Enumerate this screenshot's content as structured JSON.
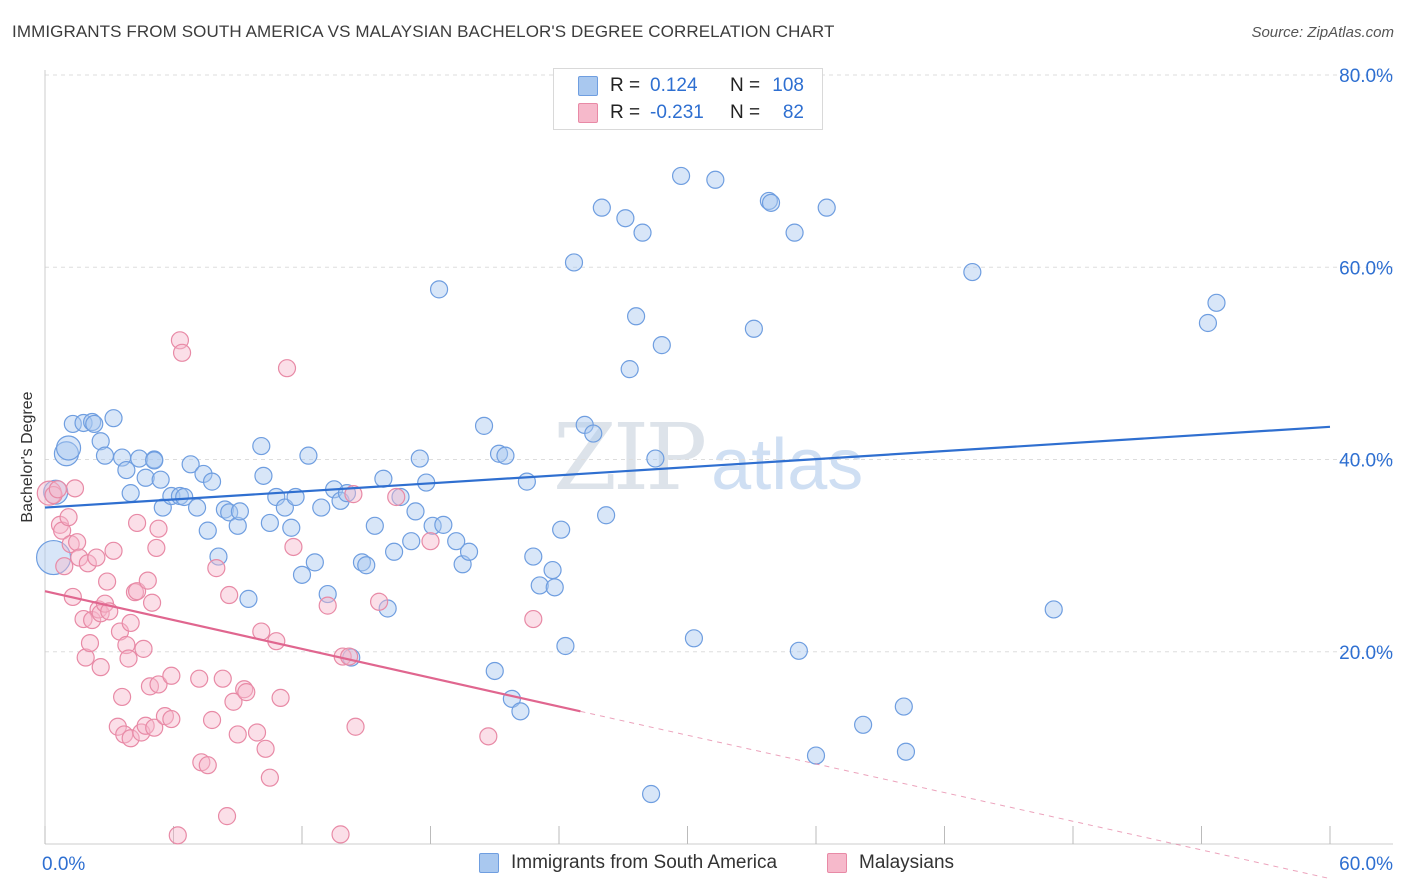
{
  "title": "IMMIGRANTS FROM SOUTH AMERICA VS MALAYSIAN BACHELOR'S DEGREE CORRELATION CHART",
  "source": "Source: ZipAtlas.com",
  "watermark": {
    "zip": "ZIP",
    "atlas": "atlas"
  },
  "legend_top": [
    {
      "key": "R =",
      "r": "0.124",
      "n_key": "N =",
      "n": "108"
    },
    {
      "key": "R =",
      "r": "-0.231",
      "n_key": "N =",
      "n": "82"
    }
  ],
  "legend_bottom": [
    "Immigrants from South America",
    "Malaysians"
  ],
  "colors": {
    "blue_fill": "#a9c8ef",
    "blue_stroke": "#6f9ee0",
    "blue_line": "#2f6fd0",
    "pink_fill": "#f6b9cb",
    "pink_stroke": "#e88aa6",
    "pink_line": "#e0668f",
    "grid": "#dddddd",
    "axis_text": "#2e6fd1"
  },
  "chart_data": {
    "type": "scatter",
    "title": "IMMIGRANTS FROM SOUTH AMERICA VS MALAYSIAN BACHELOR'S DEGREE CORRELATION CHART",
    "xlabel": "",
    "ylabel": "Bachelor's Degree",
    "xlim": [
      0,
      60
    ],
    "ylim": [
      0,
      82
    ],
    "x_tick_labels": [
      "0.0%",
      "60.0%"
    ],
    "y_ticks": [
      20,
      40,
      60,
      80
    ],
    "y_tick_labels": [
      "20.0%",
      "40.0%",
      "60.0%",
      "80.0%"
    ],
    "grid": true,
    "legend_position": "top-center",
    "series": [
      {
        "name": "Immigrants from South America",
        "R": 0.124,
        "N": 108,
        "trend": {
          "x0": 0,
          "y0": 35.0,
          "x1": 60,
          "y1": 43.4
        },
        "points": [
          [
            0.4,
            29.8,
            3
          ],
          [
            0.5,
            36.6,
            2
          ],
          [
            1.0,
            40.6,
            2
          ],
          [
            1.1,
            41.2,
            2
          ],
          [
            1.3,
            43.7,
            1
          ],
          [
            1.8,
            43.8,
            1
          ],
          [
            2.2,
            43.9,
            1
          ],
          [
            2.3,
            43.7,
            1
          ],
          [
            2.6,
            41.9,
            1
          ],
          [
            2.8,
            40.4,
            1
          ],
          [
            3.2,
            44.3,
            1
          ],
          [
            3.6,
            40.2,
            1
          ],
          [
            3.8,
            38.9,
            1
          ],
          [
            4.0,
            36.5,
            1
          ],
          [
            4.4,
            40.1,
            1
          ],
          [
            4.7,
            38.1,
            1
          ],
          [
            5.1,
            40.0,
            1
          ],
          [
            5.1,
            39.9,
            1
          ],
          [
            5.4,
            37.9,
            1
          ],
          [
            5.5,
            35.0,
            1
          ],
          [
            5.9,
            36.2,
            1
          ],
          [
            6.3,
            36.2,
            1
          ],
          [
            6.5,
            36.1,
            1
          ],
          [
            6.8,
            39.5,
            1
          ],
          [
            7.1,
            35.0,
            1
          ],
          [
            7.4,
            38.5,
            1
          ],
          [
            7.6,
            32.6,
            1
          ],
          [
            7.8,
            37.7,
            1
          ],
          [
            8.1,
            29.9,
            1
          ],
          [
            8.4,
            34.8,
            1
          ],
          [
            8.6,
            34.5,
            1
          ],
          [
            9.0,
            33.1,
            1
          ],
          [
            9.1,
            34.6,
            1
          ],
          [
            9.5,
            25.5,
            1
          ],
          [
            10.1,
            41.4,
            1
          ],
          [
            10.2,
            38.3,
            1
          ],
          [
            10.5,
            33.4,
            1
          ],
          [
            10.8,
            36.1,
            1
          ],
          [
            11.2,
            35.0,
            1
          ],
          [
            11.5,
            32.9,
            1
          ],
          [
            11.7,
            36.1,
            1
          ],
          [
            12.0,
            28.0,
            1
          ],
          [
            12.3,
            40.4,
            1
          ],
          [
            12.6,
            29.3,
            1
          ],
          [
            12.9,
            35.0,
            1
          ],
          [
            13.2,
            26.0,
            1
          ],
          [
            13.5,
            36.9,
            1
          ],
          [
            13.8,
            35.7,
            1
          ],
          [
            14.1,
            36.5,
            1
          ],
          [
            14.3,
            19.4,
            1
          ],
          [
            14.8,
            29.3,
            1
          ],
          [
            15.0,
            29.0,
            1
          ],
          [
            15.4,
            33.1,
            1
          ],
          [
            15.8,
            38.0,
            1
          ],
          [
            16.0,
            24.5,
            1
          ],
          [
            16.3,
            30.4,
            1
          ],
          [
            16.6,
            36.1,
            1
          ],
          [
            17.1,
            31.5,
            1
          ],
          [
            17.3,
            34.6,
            1
          ],
          [
            17.5,
            40.1,
            1
          ],
          [
            17.8,
            37.6,
            1
          ],
          [
            18.1,
            33.1,
            1
          ],
          [
            18.4,
            57.7,
            1
          ],
          [
            18.6,
            33.2,
            1
          ],
          [
            19.2,
            31.5,
            1
          ],
          [
            19.5,
            29.1,
            1
          ],
          [
            19.8,
            30.4,
            1
          ],
          [
            20.5,
            43.5,
            1
          ],
          [
            21.0,
            18.0,
            1
          ],
          [
            21.2,
            40.6,
            1
          ],
          [
            21.5,
            40.4,
            1
          ],
          [
            21.8,
            15.1,
            1
          ],
          [
            22.2,
            13.8,
            1
          ],
          [
            22.5,
            37.7,
            1
          ],
          [
            22.8,
            29.9,
            1
          ],
          [
            23.1,
            26.9,
            1
          ],
          [
            23.7,
            28.5,
            1
          ],
          [
            23.8,
            26.7,
            1
          ],
          [
            24.1,
            32.7,
            1
          ],
          [
            24.3,
            20.6,
            1
          ],
          [
            24.7,
            60.5,
            1
          ],
          [
            25.2,
            43.6,
            1
          ],
          [
            25.6,
            42.7,
            1
          ],
          [
            26.0,
            66.2,
            1
          ],
          [
            26.2,
            34.2,
            1
          ],
          [
            27.1,
            65.1,
            1
          ],
          [
            27.3,
            49.4,
            1
          ],
          [
            27.6,
            54.9,
            1
          ],
          [
            27.9,
            63.6,
            1
          ],
          [
            28.3,
            5.2,
            1
          ],
          [
            28.5,
            40.1,
            1
          ],
          [
            28.8,
            51.9,
            1
          ],
          [
            29.7,
            69.5,
            1
          ],
          [
            30.3,
            21.4,
            1
          ],
          [
            31.3,
            69.1,
            1
          ],
          [
            33.1,
            53.6,
            1
          ],
          [
            33.8,
            66.9,
            1
          ],
          [
            33.9,
            66.7,
            1
          ],
          [
            35.0,
            63.6,
            1
          ],
          [
            35.2,
            20.1,
            1
          ],
          [
            36.0,
            9.2,
            1
          ],
          [
            36.5,
            66.2,
            1
          ],
          [
            38.2,
            12.4,
            1
          ],
          [
            40.1,
            14.3,
            1
          ],
          [
            40.2,
            9.6,
            1
          ],
          [
            43.3,
            59.5,
            1
          ],
          [
            47.1,
            24.4,
            1
          ],
          [
            54.3,
            54.2,
            1
          ],
          [
            54.7,
            56.3,
            1
          ]
        ]
      },
      {
        "name": "Malaysians",
        "R": -0.231,
        "N": 82,
        "trend": {
          "x0": 0,
          "y0": 26.3,
          "x1": 25,
          "y1": 13.8
        },
        "trend_dashed": {
          "x0": 25,
          "y0": 13.8,
          "x1": 60,
          "y1": -3.6
        },
        "points": [
          [
            0.2,
            36.5,
            2
          ],
          [
            0.4,
            36.3,
            1
          ],
          [
            0.6,
            36.9,
            1
          ],
          [
            0.7,
            33.2,
            1
          ],
          [
            0.8,
            32.6,
            1
          ],
          [
            0.9,
            28.9,
            1
          ],
          [
            1.1,
            34.0,
            1
          ],
          [
            1.2,
            31.2,
            1
          ],
          [
            1.3,
            25.7,
            1
          ],
          [
            1.4,
            37.0,
            1
          ],
          [
            1.5,
            31.4,
            1
          ],
          [
            1.6,
            29.8,
            1
          ],
          [
            1.8,
            23.4,
            1
          ],
          [
            1.9,
            19.4,
            1
          ],
          [
            2.0,
            29.2,
            1
          ],
          [
            2.1,
            20.9,
            1
          ],
          [
            2.2,
            23.3,
            1
          ],
          [
            2.4,
            29.8,
            1
          ],
          [
            2.5,
            24.4,
            1
          ],
          [
            2.6,
            24.0,
            1
          ],
          [
            2.6,
            18.4,
            1
          ],
          [
            2.8,
            25.0,
            1
          ],
          [
            2.9,
            27.3,
            1
          ],
          [
            3.0,
            24.2,
            1
          ],
          [
            3.2,
            30.5,
            1
          ],
          [
            3.4,
            12.2,
            1
          ],
          [
            3.5,
            22.1,
            1
          ],
          [
            3.6,
            15.3,
            1
          ],
          [
            3.7,
            11.4,
            1
          ],
          [
            3.8,
            20.7,
            1
          ],
          [
            3.9,
            19.3,
            1
          ],
          [
            4.0,
            23.0,
            1
          ],
          [
            4.0,
            11.0,
            1
          ],
          [
            4.2,
            26.2,
            1
          ],
          [
            4.3,
            26.3,
            1
          ],
          [
            4.3,
            33.4,
            1
          ],
          [
            4.5,
            11.6,
            1
          ],
          [
            4.6,
            20.3,
            1
          ],
          [
            4.7,
            12.3,
            1
          ],
          [
            4.8,
            27.4,
            1
          ],
          [
            4.9,
            16.4,
            1
          ],
          [
            5.0,
            25.1,
            1
          ],
          [
            5.1,
            12.1,
            1
          ],
          [
            5.2,
            30.8,
            1
          ],
          [
            5.3,
            32.8,
            1
          ],
          [
            5.3,
            16.6,
            1
          ],
          [
            5.6,
            13.3,
            1
          ],
          [
            5.9,
            13.0,
            1
          ],
          [
            5.9,
            17.5,
            1
          ],
          [
            6.2,
            0.9,
            1
          ],
          [
            6.3,
            52.4,
            1
          ],
          [
            6.4,
            51.1,
            1
          ],
          [
            7.2,
            17.2,
            1
          ],
          [
            7.3,
            8.5,
            1
          ],
          [
            7.6,
            8.2,
            1
          ],
          [
            7.8,
            12.9,
            1
          ],
          [
            8.0,
            28.7,
            1
          ],
          [
            8.3,
            17.2,
            1
          ],
          [
            8.5,
            2.9,
            1
          ],
          [
            8.6,
            25.9,
            1
          ],
          [
            8.8,
            14.8,
            1
          ],
          [
            9.0,
            11.4,
            1
          ],
          [
            9.3,
            16.1,
            1
          ],
          [
            9.4,
            15.8,
            1
          ],
          [
            9.9,
            11.6,
            1
          ],
          [
            10.1,
            22.1,
            1
          ],
          [
            10.3,
            9.9,
            1
          ],
          [
            10.5,
            6.9,
            1
          ],
          [
            10.8,
            21.1,
            1
          ],
          [
            11.0,
            15.2,
            1
          ],
          [
            11.3,
            49.5,
            1
          ],
          [
            11.6,
            30.9,
            1
          ],
          [
            13.2,
            24.8,
            1
          ],
          [
            13.8,
            1.0,
            1
          ],
          [
            13.9,
            19.5,
            1
          ],
          [
            14.2,
            19.5,
            1
          ],
          [
            14.4,
            36.4,
            1
          ],
          [
            14.5,
            12.2,
            1
          ],
          [
            15.6,
            25.2,
            1
          ],
          [
            16.4,
            36.1,
            1
          ],
          [
            18.0,
            31.5,
            1
          ],
          [
            20.7,
            11.2,
            1
          ],
          [
            22.8,
            23.4,
            1
          ]
        ]
      }
    ]
  }
}
